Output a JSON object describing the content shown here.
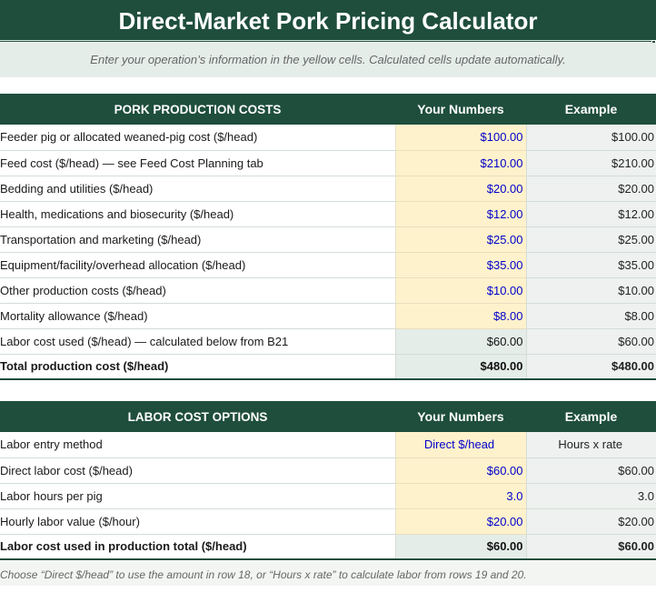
{
  "title": "Direct-Market Pork Pricing Calculator",
  "subtitle": "Enter your operation’s information in the yellow cells. Calculated cells update automatically.",
  "colors": {
    "header_green": "#1f4e3d",
    "input_yellow": "#fef2cc",
    "input_text_blue": "#0000cc",
    "calc_gray": "#e5ede9"
  },
  "production": {
    "headers": {
      "label": "PORK PRODUCTION COSTS",
      "your": "Your Numbers",
      "example": "Example"
    },
    "rows": [
      {
        "label": "Feeder pig or allocated weaned-pig cost ($/head)",
        "your": "$100.00",
        "example": "$100.00"
      },
      {
        "label": "Feed cost ($/head) — see Feed Cost Planning tab",
        "your": "$210.00",
        "example": "$210.00"
      },
      {
        "label": "Bedding and utilities ($/head)",
        "your": "$20.00",
        "example": "$20.00"
      },
      {
        "label": "Health, medications and biosecurity ($/head)",
        "your": "$12.00",
        "example": "$12.00"
      },
      {
        "label": "Transportation and marketing ($/head)",
        "your": "$25.00",
        "example": "$25.00"
      },
      {
        "label": "Equipment/facility/overhead allocation ($/head)",
        "your": "$35.00",
        "example": "$35.00"
      },
      {
        "label": "Other production costs ($/head)",
        "your": "$10.00",
        "example": "$10.00"
      },
      {
        "label": "Mortality allowance ($/head)",
        "your": "$8.00",
        "example": "$8.00"
      }
    ],
    "calc_row": {
      "label": "Labor cost used ($/head) — calculated below from B21",
      "your": "$60.00",
      "example": "$60.00"
    },
    "total_row": {
      "label": "Total production cost ($/head)",
      "your": "$480.00",
      "example": "$480.00"
    }
  },
  "labor": {
    "headers": {
      "label": "LABOR COST OPTIONS",
      "your": "Your Numbers",
      "example": "Example"
    },
    "rows": [
      {
        "label": "Labor entry method",
        "your": "Direct $/head",
        "example": "Hours x rate"
      },
      {
        "label": "Direct labor cost ($/head)",
        "your": "$60.00",
        "example": "$60.00"
      },
      {
        "label": "Labor hours per pig",
        "your": "3.0",
        "example": "3.0"
      },
      {
        "label": "Hourly labor value ($/hour)",
        "your": "$20.00",
        "example": "$20.00"
      }
    ],
    "total_row": {
      "label": "Labor cost used in production total ($/head)",
      "your": "$60.00",
      "example": "$60.00"
    }
  },
  "note": "Choose “Direct $/head” to use the amount in row 18, or “Hours x rate” to calculate labor from rows 19 and 20."
}
